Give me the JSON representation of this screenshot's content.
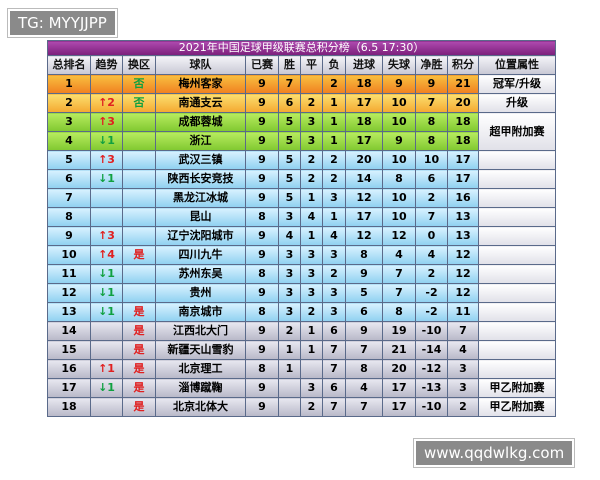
{
  "overlay_top": "TG: MYYJJPP",
  "overlay_bottom": "www.qqdwlkg.com",
  "table": {
    "title": "2021年中国足球甲级联赛总积分榜（6.5 17:30）",
    "headers": [
      "总排名",
      "趋势",
      "换区",
      "球队",
      "已赛",
      "胜",
      "平",
      "负",
      "进球",
      "失球",
      "净胜",
      "积分",
      "位置属性"
    ],
    "rows": [
      {
        "cells": [
          1,
          null,
          "否",
          "梅州客家",
          9,
          7,
          null,
          2,
          18,
          9,
          9,
          21
        ],
        "attribute": "冠军/升级"
      },
      {
        "cells": [
          2,
          "↑2",
          "否",
          "南通支云",
          9,
          6,
          2,
          1,
          17,
          10,
          7,
          20
        ],
        "attribute": "升级"
      },
      {
        "cells": [
          3,
          "↑3",
          null,
          "成都蓉城",
          9,
          5,
          3,
          1,
          18,
          10,
          8,
          18
        ],
        "attribute": "超甲附加赛"
      },
      {
        "cells": [
          4,
          "↓1",
          null,
          "浙江",
          9,
          5,
          3,
          1,
          17,
          9,
          8,
          18
        ]
      },
      {
        "cells": [
          5,
          "↑3",
          null,
          "武汉三镇",
          9,
          5,
          2,
          2,
          20,
          10,
          10,
          17
        ]
      },
      {
        "cells": [
          6,
          "↓1",
          null,
          "陕西长安竞技",
          9,
          5,
          2,
          2,
          14,
          8,
          6,
          17
        ]
      },
      {
        "cells": [
          7,
          null,
          null,
          "黑龙江冰城",
          9,
          5,
          1,
          3,
          12,
          10,
          2,
          16
        ]
      },
      {
        "cells": [
          8,
          null,
          null,
          "昆山",
          8,
          3,
          4,
          1,
          17,
          10,
          7,
          13
        ]
      },
      {
        "cells": [
          9,
          "↑3",
          null,
          "辽宁沈阳城市",
          9,
          4,
          1,
          4,
          12,
          12,
          0,
          13
        ]
      },
      {
        "cells": [
          10,
          "↑4",
          "是",
          "四川九牛",
          9,
          3,
          3,
          3,
          8,
          4,
          4,
          12
        ]
      },
      {
        "cells": [
          11,
          "↓1",
          null,
          "苏州东吴",
          8,
          3,
          3,
          2,
          9,
          7,
          2,
          12
        ]
      },
      {
        "cells": [
          12,
          "↓1",
          null,
          "贵州",
          9,
          3,
          3,
          3,
          5,
          7,
          -2,
          12
        ]
      },
      {
        "cells": [
          13,
          "↓1",
          "是",
          "南京城市",
          8,
          3,
          2,
          3,
          6,
          8,
          -2,
          11
        ]
      },
      {
        "cells": [
          14,
          null,
          "是",
          "江西北大门",
          9,
          2,
          1,
          6,
          9,
          19,
          -10,
          7
        ]
      },
      {
        "cells": [
          15,
          null,
          "是",
          "新疆天山雪豹",
          9,
          1,
          1,
          7,
          7,
          21,
          -14,
          4
        ]
      },
      {
        "cells": [
          16,
          "↑1",
          "是",
          "北京理工",
          8,
          1,
          null,
          7,
          8,
          20,
          -12,
          3
        ]
      },
      {
        "cells": [
          17,
          "↓1",
          "是",
          "淄博蹴鞠",
          9,
          null,
          3,
          6,
          4,
          17,
          -13,
          3
        ],
        "attribute": "甲乙附加赛"
      },
      {
        "cells": [
          18,
          null,
          "是",
          "北京北体大",
          9,
          null,
          2,
          7,
          7,
          17,
          -10,
          2
        ],
        "attribute": "甲乙附加赛"
      }
    ]
  }
}
